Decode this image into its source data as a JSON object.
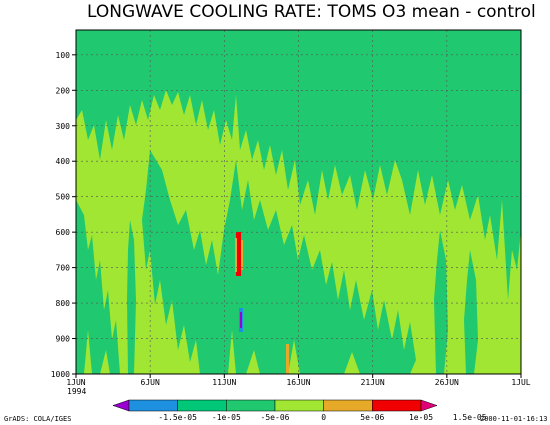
{
  "title": "LONGWAVE COOLING RATE: TOMS O3 mean - control",
  "credit_left": "GrADS: COLA/IGES",
  "credit_right": "2000-11-01-16:13",
  "chart_data": {
    "type": "heatmap",
    "title": "LONGWAVE COOLING RATE: TOMS O3 mean - control",
    "x_ticks": [
      "1JUN",
      "6JUN",
      "11JUN",
      "16JUN",
      "21JUN",
      "26JUN",
      "1JUL"
    ],
    "x_tick_days": [
      0,
      5,
      10,
      15,
      20,
      25,
      30
    ],
    "x_year_label": "1994",
    "y_ticks": [
      100,
      200,
      300,
      400,
      500,
      600,
      700,
      800,
      900,
      1000
    ],
    "ylim": [
      1000,
      30
    ],
    "y_inverted": true,
    "grid": true,
    "colorbar": {
      "labels": [
        "-1.5e-05",
        "-1e-05",
        "-5e-06",
        "0",
        "5e-06",
        "1e-05",
        "1.5e-05"
      ],
      "colors": [
        "#9a00d0",
        "#1e90e0",
        "#00c878",
        "#20c870",
        "#a0e632",
        "#e6aa28",
        "#f00000",
        "#e00078"
      ]
    },
    "field_colors": {
      "background": "#a0e632",
      "negative_small": "#20c870",
      "positive_mid": "#e6aa28",
      "positive_high": "#f00000",
      "negative_mid": "#1e90e0",
      "negative_high": "#9a00d0"
    }
  }
}
